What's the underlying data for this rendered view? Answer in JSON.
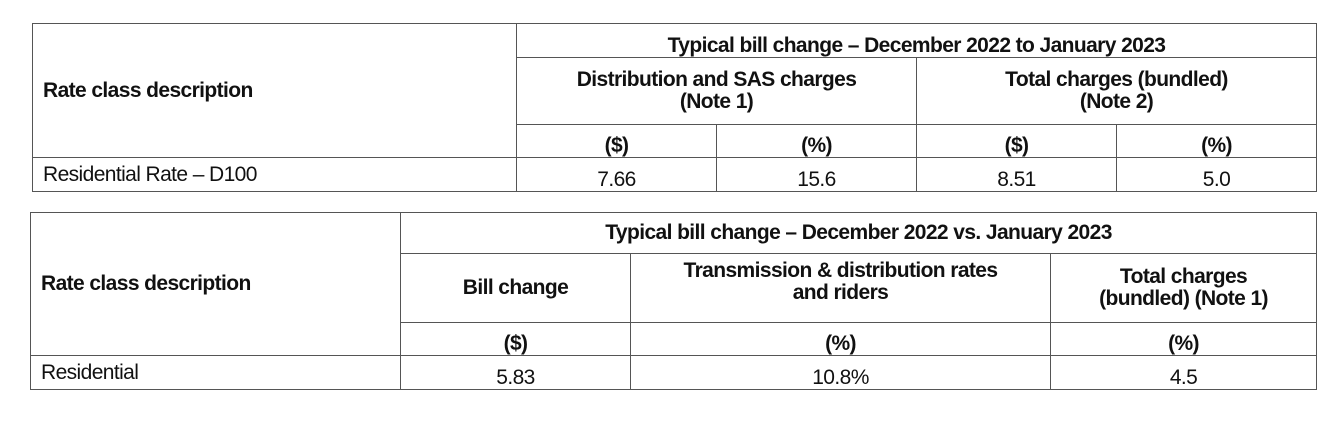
{
  "table1": {
    "rate_class_header": "Rate class description",
    "group_header": "Typical bill change – December 2022 to January 2023",
    "sub_headers": [
      "Distribution and SAS charges (Note 1)",
      "Total charges (bundled) (Note 2)"
    ],
    "sub_headers_lines": [
      [
        "Distribution and SAS charges",
        "(Note 1)"
      ],
      [
        "Total charges (bundled)",
        "(Note 2)"
      ]
    ],
    "units": [
      "($)",
      "(%)",
      "($)",
      "(%)"
    ],
    "rows": [
      {
        "label": "Residential Rate – D100",
        "values": [
          "7.66",
          "15.6",
          "8.51",
          "5.0"
        ]
      }
    ]
  },
  "table2": {
    "rate_class_header": "Rate class description",
    "group_header": "Typical bill change – December 2022 vs. January 2023",
    "sub_headers_lines": [
      [
        "Bill change"
      ],
      [
        "Transmission & distribution rates",
        "and riders"
      ],
      [
        "Total charges",
        "(bundled) (Note 1)"
      ]
    ],
    "units": [
      "($)",
      "(%)",
      "(%)"
    ],
    "rows": [
      {
        "label": "Residential",
        "values": [
          "5.83",
          "10.8%",
          "4.5"
        ]
      }
    ]
  }
}
